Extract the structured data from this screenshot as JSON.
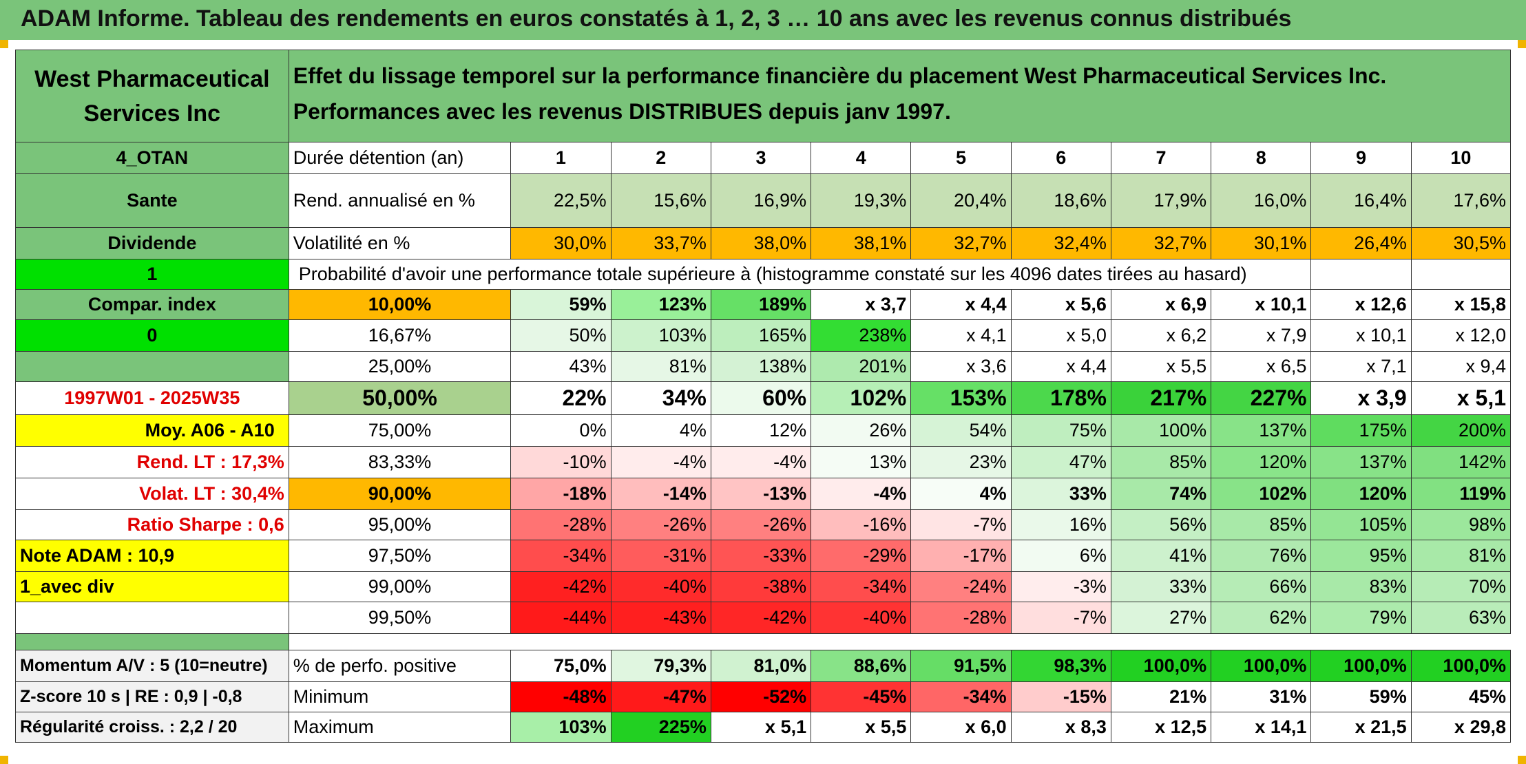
{
  "banner": "ADAM Informe. Tableau des rendements en euros constatés à 1, 2, 3 … 10 ans avec les revenus connus distribués",
  "title_left": "West Pharmaceutical Services Inc",
  "title_right": "Effet du lissage temporel sur la performance financière du placement West Pharmaceutical Services Inc. Performances avec les revenus DISTRIBUES depuis janv 1997.",
  "left": {
    "otan": "4_OTAN",
    "sector": "Sante",
    "dividende": "Dividende",
    "one": "1",
    "compar": "Compar. index",
    "zero": "0",
    "period": "1997W01 - 2025W35",
    "moy": "Moy. A06 - A10",
    "rend_lt": "Rend. LT :   17,3%",
    "volat_lt": "Volat. LT :   30,4%",
    "sharpe": "Ratio Sharpe :    0,6",
    "note": "Note ADAM : 10,9",
    "avec_div": "1_avec div",
    "momentum": "Momentum A/V : 5 (10=neutre)",
    "zscore": "Z-score 10 s | RE : 0,9 | -0,8",
    "regularite": "Régularité croiss. : 2,2 / 20"
  },
  "header": {
    "label": "Durée détention (an)",
    "years": [
      "1",
      "2",
      "3",
      "4",
      "5",
      "6",
      "7",
      "8",
      "9",
      "10"
    ]
  },
  "rend": {
    "label": "Rend. annualisé en %",
    "values": [
      "22,5%",
      "15,6%",
      "16,9%",
      "19,3%",
      "20,4%",
      "18,6%",
      "17,9%",
      "16,0%",
      "16,4%",
      "17,6%"
    ]
  },
  "volat": {
    "label": "Volatilité en %",
    "values": [
      "30,0%",
      "33,7%",
      "38,0%",
      "38,1%",
      "32,7%",
      "32,4%",
      "32,7%",
      "30,1%",
      "26,4%",
      "30,5%"
    ]
  },
  "prob_title": "Probabilité d'avoir une performance totale supérieure à (histogramme constaté sur les 4096 dates tirées au hasard)",
  "prob_rows": [
    {
      "pct": "10,00%",
      "values": [
        "59%",
        "123%",
        "189%",
        "x 3,7",
        "x 4,4",
        "x 5,6",
        "x 6,9",
        "x 10,1",
        "x 12,6",
        "x 15,8"
      ]
    },
    {
      "pct": "16,67%",
      "values": [
        "50%",
        "103%",
        "165%",
        "238%",
        "x 4,1",
        "x 5,0",
        "x 6,2",
        "x 7,9",
        "x 10,1",
        "x 12,0"
      ]
    },
    {
      "pct": "25,00%",
      "values": [
        "43%",
        "81%",
        "138%",
        "201%",
        "x 3,6",
        "x 4,4",
        "x 5,5",
        "x 6,5",
        "x 7,1",
        "x 9,4"
      ]
    },
    {
      "pct": "50,00%",
      "values": [
        "22%",
        "34%",
        "60%",
        "102%",
        "153%",
        "178%",
        "217%",
        "227%",
        "x 3,9",
        "x 5,1"
      ]
    },
    {
      "pct": "75,00%",
      "values": [
        "0%",
        "4%",
        "12%",
        "26%",
        "54%",
        "75%",
        "100%",
        "137%",
        "175%",
        "200%"
      ]
    },
    {
      "pct": "83,33%",
      "values": [
        "-10%",
        "-4%",
        "-4%",
        "13%",
        "23%",
        "47%",
        "85%",
        "120%",
        "137%",
        "142%"
      ]
    },
    {
      "pct": "90,00%",
      "values": [
        "-18%",
        "-14%",
        "-13%",
        "-4%",
        "4%",
        "33%",
        "74%",
        "102%",
        "120%",
        "119%"
      ]
    },
    {
      "pct": "95,00%",
      "values": [
        "-28%",
        "-26%",
        "-26%",
        "-16%",
        "-7%",
        "16%",
        "56%",
        "85%",
        "105%",
        "98%"
      ]
    },
    {
      "pct": "97,50%",
      "values": [
        "-34%",
        "-31%",
        "-33%",
        "-29%",
        "-17%",
        "6%",
        "41%",
        "76%",
        "95%",
        "81%"
      ]
    },
    {
      "pct": "99,00%",
      "values": [
        "-42%",
        "-40%",
        "-38%",
        "-34%",
        "-24%",
        "-3%",
        "33%",
        "66%",
        "83%",
        "70%"
      ]
    },
    {
      "pct": "99,50%",
      "values": [
        "-44%",
        "-43%",
        "-42%",
        "-40%",
        "-28%",
        "-7%",
        "27%",
        "62%",
        "79%",
        "63%"
      ]
    }
  ],
  "prob_colors": [
    [
      "#d9f5d9",
      "#99f099",
      "#66e066",
      "#ffffff",
      "#ffffff",
      "#ffffff",
      "#ffffff",
      "#ffffff",
      "#ffffff",
      "#ffffff"
    ],
    [
      "#e6f7e6",
      "#ccf2cc",
      "#bdeebd",
      "#33dd33",
      "#ffffff",
      "#ffffff",
      "#ffffff",
      "#ffffff",
      "#ffffff",
      "#ffffff"
    ],
    [
      "#ffffff",
      "#e6f7e6",
      "#d4f2d4",
      "#aeeaae",
      "#ffffff",
      "#ffffff",
      "#ffffff",
      "#ffffff",
      "#ffffff",
      "#ffffff"
    ],
    [
      "#ffffff",
      "#ffffff",
      "#ecfaec",
      "#b6efb6",
      "#66e066",
      "#4cd84c",
      "#3ad23a",
      "#44d544",
      "#ffffff",
      "#ffffff"
    ],
    [
      "#ffffff",
      "#ffffff",
      "#ffffff",
      "#f2fbf2",
      "#d6f3d6",
      "#bfeebf",
      "#a8e9a8",
      "#88e388",
      "#5fdc5f",
      "#44d544"
    ],
    [
      "#ffd9d9",
      "#ffecec",
      "#ffecec",
      "#f5fcf5",
      "#e6f7e6",
      "#ccf2cc",
      "#a8e9a8",
      "#8ae48a",
      "#88e388",
      "#80e080"
    ],
    [
      "#ffa6a6",
      "#ffbdbd",
      "#ffc4c4",
      "#ffecec",
      "#f7fdf7",
      "#dcf5dc",
      "#a8e9a8",
      "#88e388",
      "#80e080",
      "#82e182"
    ],
    [
      "#ff7373",
      "#ff8080",
      "#ff8080",
      "#ffbdbd",
      "#ffe4e4",
      "#eaf9ea",
      "#c4efc4",
      "#a8e9a8",
      "#94e594",
      "#9ce79c"
    ],
    [
      "#ff4d4d",
      "#ff5c5c",
      "#ff5454",
      "#ff6b6b",
      "#ffb0b0",
      "#f2fbf2",
      "#cdf1cd",
      "#b0eab0",
      "#9ce79c",
      "#a8e9a8"
    ],
    [
      "#ff2020",
      "#ff2b2b",
      "#ff3a3a",
      "#ff4d4d",
      "#ff8080",
      "#ffeded",
      "#d4f2d4",
      "#b6ecb6",
      "#a8e9a8",
      "#b6ecb6"
    ],
    [
      "#ff1a1a",
      "#ff1f1f",
      "#ff2626",
      "#ff3333",
      "#ff7373",
      "#ffdede",
      "#dcf5dc",
      "#b9ecb9",
      "#acebac",
      "#b9ecb9"
    ]
  ],
  "stats": [
    {
      "label": "% de perfo. positive",
      "values": [
        "75,0%",
        "79,3%",
        "81,0%",
        "88,6%",
        "91,5%",
        "98,3%",
        "100,0%",
        "100,0%",
        "100,0%",
        "100,0%"
      ],
      "colors": [
        "#ffffff",
        "#e0f6e0",
        "#d0f2d0",
        "#88e388",
        "#66dd66",
        "#33d633",
        "#22d022",
        "#22d022",
        "#22d022",
        "#22d022"
      ]
    },
    {
      "label": "Minimum",
      "values": [
        "-48%",
        "-47%",
        "-52%",
        "-45%",
        "-34%",
        "-15%",
        "21%",
        "31%",
        "59%",
        "45%"
      ],
      "colors": [
        "#ff0000",
        "#ff1a1a",
        "#ff0000",
        "#ff3333",
        "#ff6666",
        "#ffcccc",
        "#ffffff",
        "#ffffff",
        "#ffffff",
        "#ffffff"
      ]
    },
    {
      "label": "Maximum",
      "values": [
        "103%",
        "225%",
        "x 5,1",
        "x 5,5",
        "x 6,0",
        "x 8,3",
        "x 12,5",
        "x 14,1",
        "x 21,5",
        "x 29,8"
      ],
      "colors": [
        "#a8efa8",
        "#22d022",
        "#ffffff",
        "#ffffff",
        "#ffffff",
        "#ffffff",
        "#ffffff",
        "#ffffff",
        "#ffffff",
        "#ffffff"
      ]
    }
  ],
  "colors": {
    "header_green": "#7ac47a",
    "bright_green": "#00e000",
    "orange": "#ffb800",
    "yellow": "#ffff00",
    "red_text": "#e00000"
  }
}
